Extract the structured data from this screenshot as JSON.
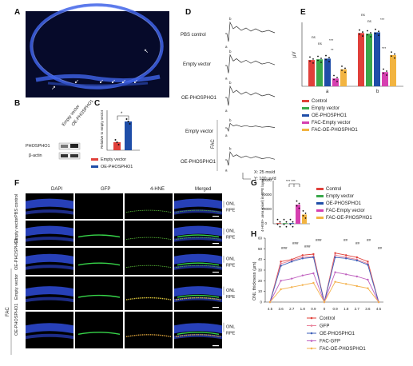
{
  "panels": {
    "a": "A",
    "b": "B",
    "c": "C",
    "d": "D",
    "e": "E",
    "f": "F",
    "g": "G",
    "h": "H"
  },
  "panel_b": {
    "lanes": [
      "Empty vector",
      "OE-PHOSPHO1"
    ],
    "rows": [
      "PHOSPHO1",
      "β-actin"
    ]
  },
  "panel_c": {
    "ylabel": "Relative to empty vector",
    "significance": "*",
    "legend": [
      "Empty vector",
      "OE-PHOSPHO1"
    ],
    "colors": [
      "#e0403a",
      "#1f4ea8"
    ]
  },
  "panel_d": {
    "traces": [
      "PBS control",
      "Empty vector",
      "OE-PHOSPHO1",
      "Empty vector",
      "OE-PHOSPHO1"
    ],
    "group": "FAC",
    "wave_a": "a",
    "wave_b": "b",
    "scale_x": "X: 25 ms/d",
    "scale_y": "Y: 100 uv/d"
  },
  "panel_e": {
    "ylabel": "μV",
    "groups": [
      "a",
      "b"
    ],
    "ns": "ns",
    "stars2": "**",
    "stars3": "***",
    "legend": [
      "Control",
      "Empty vector",
      "OE-PHOSPHO1",
      "FAC-Empty vector",
      "FAC-OE-PHOSPHO1"
    ],
    "colors": [
      "#e0403a",
      "#39a84a",
      "#1f4ea8",
      "#d63fb0",
      "#f2b441"
    ]
  },
  "panel_f": {
    "columns": [
      "DAPI",
      "GFP",
      "4-HNE",
      "Merged"
    ],
    "rows": [
      "PBS control",
      "Empty vector",
      "OE-PHOSPHO1",
      "Empty vector",
      "OE-PHOSPHO1"
    ],
    "group": "FAC",
    "onl": "ONL",
    "rpe": "RPE"
  },
  "panel_g": {
    "ylabel": "4-HNE+ area (pixel) in RPE layer",
    "yticks": [
      "0",
      "10000",
      "20000",
      "30000"
    ],
    "stars": "*** ***",
    "legend": [
      "Control",
      "Empty vector",
      "OE-PHOSPHO1",
      "FAC-Empty vector",
      "FAC-OE-PHOSPHO1"
    ],
    "colors": [
      "#e0403a",
      "#39a84a",
      "#1f4ea8",
      "#d63fb0",
      "#f2b441"
    ]
  },
  "panel_h": {
    "ylabel": "ONL thickness (μm)",
    "yticks": [
      "0",
      "10",
      "20",
      "30",
      "40",
      "50",
      "60"
    ],
    "xticks": [
      "4.5",
      "3.6",
      "2.7",
      "1.8",
      "0.9",
      "0",
      "0.9",
      "1.8",
      "2.7",
      "3.6",
      "4.5"
    ],
    "annot_hash3": "###",
    "annot_hash2": "##",
    "legend": [
      "Control",
      "GFP",
      "OE-PHOSPHO1",
      "FAC-GFP",
      "FAC-OE-PHOSPHO1"
    ],
    "colors": [
      "#e0403a",
      "#e8829a",
      "#3d5fb8",
      "#c062c0",
      "#f4b24e"
    ]
  },
  "chart_data": [
    {
      "type": "bar",
      "panel": "C",
      "categories": [
        "Empty vector",
        "OE-PHOSPHO1"
      ],
      "values": [
        1.0,
        3.6
      ],
      "ylim": [
        0,
        5
      ]
    },
    {
      "type": "bar",
      "panel": "E",
      "categories": [
        "a",
        "b"
      ],
      "series": [
        {
          "name": "Control",
          "values": [
            185,
            375
          ]
        },
        {
          "name": "Empty vector",
          "values": [
            190,
            370
          ]
        },
        {
          "name": "OE-PHOSPHO1",
          "values": [
            195,
            380
          ]
        },
        {
          "name": "FAC-Empty vector",
          "values": [
            55,
            100
          ]
        },
        {
          "name": "FAC-OE-PHOSPHO1",
          "values": [
            120,
            220
          ]
        }
      ],
      "ylim": [
        0,
        450
      ]
    },
    {
      "type": "bar",
      "panel": "G",
      "categories": [
        "Control",
        "Empty vector",
        "OE-PHOSPHO1",
        "FAC-Empty vector",
        "FAC-OE-PHOSPHO1"
      ],
      "values": [
        300,
        350,
        300,
        15500,
        7500
      ],
      "ylim": [
        0,
        35000
      ]
    },
    {
      "type": "line",
      "panel": "H",
      "x": [
        "4.5",
        "3.6",
        "2.7",
        "1.8",
        "0.9",
        "0",
        "0.9",
        "1.8",
        "2.7",
        "3.6",
        "4.5"
      ],
      "series": [
        {
          "name": "Control",
          "values": [
            0,
            38,
            40,
            44,
            45,
            0,
            46,
            44,
            42,
            38,
            0
          ]
        },
        {
          "name": "GFP",
          "values": [
            0,
            36,
            39,
            42,
            43,
            0,
            44,
            42,
            40,
            36,
            0
          ]
        },
        {
          "name": "OE-PHOSPHO1",
          "values": [
            0,
            34,
            38,
            41,
            42,
            0,
            42,
            41,
            39,
            35,
            0
          ]
        },
        {
          "name": "FAC-GFP",
          "values": [
            0,
            20,
            22,
            25,
            27,
            0,
            28,
            26,
            24,
            21,
            0
          ]
        },
        {
          "name": "FAC-OE-PHOSPHO1",
          "values": [
            0,
            12,
            14,
            16,
            18,
            0,
            19,
            17,
            15,
            13,
            0
          ]
        }
      ],
      "ylim": [
        0,
        60
      ]
    }
  ]
}
